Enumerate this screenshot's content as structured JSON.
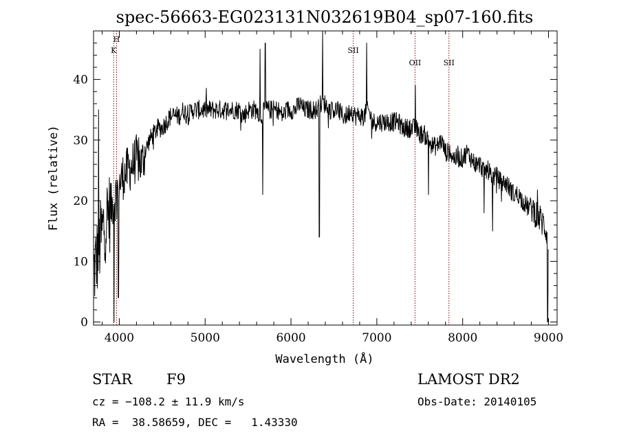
{
  "chart_data": {
    "type": "line",
    "title": "spec-56663-EG023131N032619B04_sp07-160.fits",
    "xlabel": "Wavelength (Å)",
    "ylabel": "Flux (relative)",
    "xlim": [
      3700,
      9100
    ],
    "ylim": [
      -0.5,
      48
    ],
    "xticks": [
      4000,
      5000,
      6000,
      7000,
      8000,
      9000
    ],
    "yticks": [
      0,
      10,
      20,
      30,
      40
    ],
    "grid": false,
    "line_color": "#000000",
    "marker_color": "#800000",
    "line_markers": [
      {
        "label": "H",
        "wavelength": 3968
      },
      {
        "label": "K",
        "wavelength": 3934
      },
      {
        "label": "SII",
        "wavelength": 6725
      },
      {
        "label": "OII",
        "wavelength": 7445
      },
      {
        "label": "SII",
        "wavelength": 7840
      }
    ],
    "series": [
      {
        "x": [
          3700,
          3760,
          3820,
          3880,
          3940,
          3980,
          4040,
          4100,
          4160,
          4200,
          4260,
          4300,
          4350,
          4400,
          4450,
          4500,
          4550,
          4600,
          4650,
          4700,
          4750,
          4800,
          4850,
          4900,
          4950,
          5000,
          5050,
          5100,
          5150,
          5200,
          5250,
          5300,
          5350,
          5400,
          5450,
          5500,
          5550,
          5600,
          5650,
          5700,
          5750,
          5800,
          5850,
          5900,
          5950,
          6000,
          6050,
          6100,
          6150,
          6200,
          6250,
          6300,
          6350,
          6400,
          6450,
          6500,
          6550,
          6600,
          6650,
          6700,
          6750,
          6800,
          6850,
          6900,
          6950,
          7000,
          7050,
          7100,
          7150,
          7200,
          7250,
          7300,
          7350,
          7400,
          7450,
          7500,
          7550,
          7600,
          7650,
          7700,
          7750,
          7800,
          7850,
          7900,
          7950,
          8000,
          8050,
          8100,
          8150,
          8200,
          8250,
          8300,
          8350,
          8400,
          8450,
          8500,
          8550,
          8600,
          8650,
          8700,
          8750,
          8800,
          8850,
          8900,
          8950,
          9000
        ],
        "y": [
          8,
          12,
          16,
          18,
          20,
          22,
          24,
          25,
          26,
          27,
          26,
          28,
          30,
          31,
          32,
          32,
          33,
          34,
          34,
          34,
          35,
          34,
          35,
          35,
          35,
          35,
          35,
          35,
          35,
          35,
          35,
          35,
          35,
          35,
          34,
          35,
          35,
          35,
          34,
          35,
          35,
          35,
          35,
          34,
          35,
          35,
          35,
          36,
          35,
          35,
          35,
          35,
          36,
          36,
          35,
          35,
          35,
          34,
          34,
          35,
          34,
          34,
          34,
          35,
          33,
          33,
          33,
          33,
          33,
          33,
          33,
          32,
          32,
          32,
          32,
          31,
          31,
          30,
          29,
          29,
          30,
          28,
          28,
          27,
          27,
          27,
          28,
          27,
          26,
          26,
          25,
          25,
          24,
          24,
          23,
          23,
          22,
          21,
          21,
          20,
          19,
          19,
          18,
          17,
          16,
          14
        ],
        "spikes": [
          {
            "x": 3760,
            "y": 35
          },
          {
            "x": 3940,
            "y": 0
          },
          {
            "x": 3990,
            "y": 4
          },
          {
            "x": 5640,
            "y": 45
          },
          {
            "x": 5700,
            "y": 46
          },
          {
            "x": 5670,
            "y": 21
          },
          {
            "x": 6330,
            "y": 14
          },
          {
            "x": 6370,
            "y": 48
          },
          {
            "x": 6880,
            "y": 46
          },
          {
            "x": 7450,
            "y": 39
          },
          {
            "x": 7600,
            "y": 21
          },
          {
            "x": 8250,
            "y": 18
          },
          {
            "x": 8350,
            "y": 15
          },
          {
            "x": 8990,
            "y": 0
          }
        ]
      }
    ]
  },
  "footer": {
    "object_class": "STAR",
    "subclass": "F9",
    "survey": "LAMOST DR2",
    "cz": "cz = −108.2 ± 11.9 km/s",
    "obs_date": "Obs-Date: 20140105",
    "coords": "RA =  38.58659, DEC =   1.43330"
  }
}
